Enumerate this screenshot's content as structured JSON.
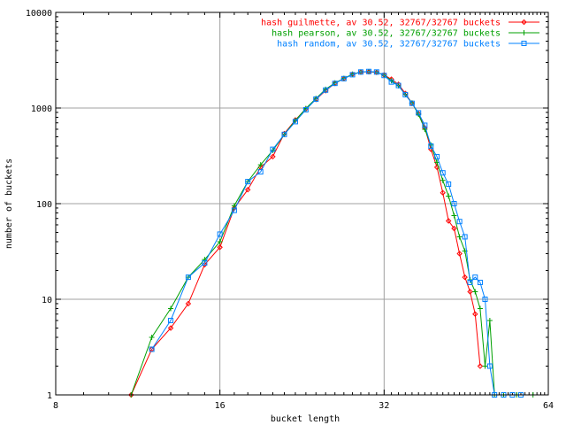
{
  "chart_data": {
    "type": "line",
    "title": "",
    "xlabel": "bucket length",
    "ylabel": "number of buckets",
    "xscale": "log2",
    "yscale": "log10",
    "xlim": [
      8,
      64
    ],
    "ylim": [
      1,
      10000
    ],
    "xticks": [
      8,
      16,
      32,
      64
    ],
    "yticks": [
      1,
      10,
      100,
      1000,
      10000
    ],
    "grid": true,
    "legend_position": "top-right",
    "series": [
      {
        "name": "hash guilmette, av 30.52, 32767/32767 buckets",
        "color": "#ff0000",
        "marker": "diamond",
        "points": [
          [
            11,
            1
          ],
          [
            12,
            3
          ],
          [
            13,
            5
          ],
          [
            14,
            9
          ],
          [
            15,
            23
          ],
          [
            16,
            35
          ],
          [
            17,
            90
          ],
          [
            18,
            140
          ],
          [
            19,
            240
          ],
          [
            20,
            310
          ],
          [
            21,
            540
          ],
          [
            22,
            750
          ],
          [
            23,
            980
          ],
          [
            24,
            1230
          ],
          [
            25,
            1520
          ],
          [
            26,
            1810
          ],
          [
            27,
            2030
          ],
          [
            28,
            2250
          ],
          [
            29,
            2380
          ],
          [
            30,
            2390
          ],
          [
            31,
            2360
          ],
          [
            32,
            2220
          ],
          [
            33,
            2000
          ],
          [
            34,
            1770
          ],
          [
            35,
            1420
          ],
          [
            36,
            1120
          ],
          [
            37,
            870
          ],
          [
            38,
            620
          ],
          [
            39,
            370
          ],
          [
            40,
            240
          ],
          [
            41,
            130
          ],
          [
            42,
            66
          ],
          [
            43,
            55
          ],
          [
            44,
            30
          ],
          [
            45,
            17
          ],
          [
            46,
            12
          ],
          [
            47,
            7
          ],
          [
            48,
            2
          ]
        ]
      },
      {
        "name": "hash pearson, av 30.52, 32767/32767 buckets",
        "color": "#00a000",
        "marker": "plus",
        "points": [
          [
            11,
            1
          ],
          [
            12,
            4
          ],
          [
            13,
            8
          ],
          [
            14,
            17
          ],
          [
            15,
            26
          ],
          [
            16,
            40
          ],
          [
            17,
            95
          ],
          [
            18,
            170
          ],
          [
            19,
            255
          ],
          [
            20,
            360
          ],
          [
            21,
            530
          ],
          [
            22,
            740
          ],
          [
            23,
            990
          ],
          [
            24,
            1260
          ],
          [
            25,
            1570
          ],
          [
            26,
            1830
          ],
          [
            27,
            2040
          ],
          [
            28,
            2260
          ],
          [
            29,
            2380
          ],
          [
            30,
            2400
          ],
          [
            31,
            2370
          ],
          [
            32,
            2200
          ],
          [
            33,
            1930
          ],
          [
            34,
            1710
          ],
          [
            35,
            1380
          ],
          [
            36,
            1130
          ],
          [
            37,
            860
          ],
          [
            38,
            600
          ],
          [
            39,
            410
          ],
          [
            40,
            270
          ],
          [
            41,
            175
          ],
          [
            42,
            120
          ],
          [
            43,
            75
          ],
          [
            44,
            45
          ],
          [
            45,
            32
          ],
          [
            46,
            16
          ],
          [
            47,
            12
          ],
          [
            48,
            8
          ],
          [
            49,
            2
          ],
          [
            50,
            6
          ],
          [
            51,
            1
          ],
          [
            53,
            1
          ],
          [
            56,
            1
          ],
          [
            60,
            1
          ]
        ]
      },
      {
        "name": "hash random, av 30.52, 32767/32767 buckets",
        "color": "#0080ff",
        "marker": "square",
        "points": [
          [
            12,
            3
          ],
          [
            13,
            6
          ],
          [
            14,
            17
          ],
          [
            15,
            24
          ],
          [
            16,
            48
          ],
          [
            17,
            85
          ],
          [
            18,
            170
          ],
          [
            19,
            215
          ],
          [
            20,
            370
          ],
          [
            21,
            530
          ],
          [
            22,
            720
          ],
          [
            23,
            960
          ],
          [
            24,
            1240
          ],
          [
            25,
            1540
          ],
          [
            26,
            1810
          ],
          [
            27,
            2030
          ],
          [
            28,
            2230
          ],
          [
            29,
            2380
          ],
          [
            30,
            2410
          ],
          [
            31,
            2380
          ],
          [
            32,
            2190
          ],
          [
            33,
            1870
          ],
          [
            34,
            1720
          ],
          [
            35,
            1380
          ],
          [
            36,
            1120
          ],
          [
            37,
            890
          ],
          [
            38,
            660
          ],
          [
            39,
            400
          ],
          [
            40,
            310
          ],
          [
            41,
            210
          ],
          [
            42,
            160
          ],
          [
            43,
            100
          ],
          [
            44,
            65
          ],
          [
            45,
            45
          ],
          [
            46,
            15
          ],
          [
            47,
            17
          ],
          [
            48,
            15
          ],
          [
            49,
            10
          ],
          [
            50,
            2
          ],
          [
            51,
            1
          ],
          [
            53,
            1
          ],
          [
            55,
            1
          ],
          [
            57,
            1
          ]
        ]
      }
    ]
  }
}
